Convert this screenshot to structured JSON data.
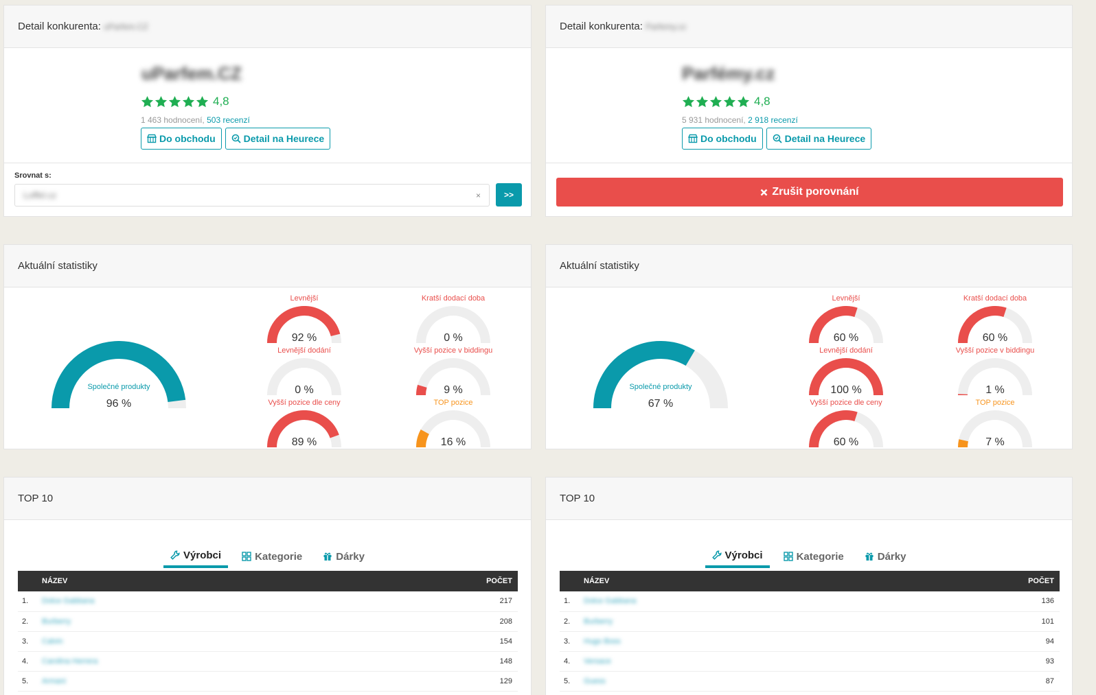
{
  "left": {
    "detail_title": "Detail konkurenta:",
    "shop_blur": "uParfem.CZ",
    "shop_name": "uParfem.CZ",
    "rating": "4,8",
    "counts_text": "1 463 hodnocení,",
    "reviews_link": "503 recenzí",
    "btn_shop": "Do obchodu",
    "btn_heureka": "Detail na Heurece",
    "compare_label": "Srovnat s:",
    "compare_value": "Loffel.cz",
    "compare_clear": "×",
    "compare_go": ">>",
    "stats_title": "Aktuální statistiky",
    "shared_label": "Společné produkty",
    "shared_value": "96 %",
    "shared_fraction": 0.96,
    "gauges": [
      {
        "title": "Levnější",
        "value": "92 %",
        "fraction": 0.92,
        "color": "#e94e4b",
        "tclass": "red"
      },
      {
        "title": "Kratší dodací doba",
        "value": "0 %",
        "fraction": 0.0,
        "color": "#e94e4b",
        "tclass": "red"
      },
      {
        "title": "Levnější dodání",
        "value": "0 %",
        "fraction": 0.0,
        "color": "#e94e4b",
        "tclass": "red"
      },
      {
        "title": "Vyšší pozice v biddingu",
        "value": "9 %",
        "fraction": 0.09,
        "color": "#e94e4b",
        "tclass": "red"
      },
      {
        "title": "Vyšší pozice dle ceny",
        "value": "89 %",
        "fraction": 0.89,
        "color": "#e94e4b",
        "tclass": "red"
      },
      {
        "title": "TOP pozice",
        "value": "16 %",
        "fraction": 0.16,
        "color": "#f7941d",
        "tclass": "orange"
      }
    ],
    "top_title": "TOP 10",
    "rows": [
      {
        "idx": "1.",
        "name": "Dolce Gabbana",
        "count": "217"
      },
      {
        "idx": "2.",
        "name": "Burberry",
        "count": "208"
      },
      {
        "idx": "3.",
        "name": "Calvin",
        "count": "154"
      },
      {
        "idx": "4.",
        "name": "Carolina Herrera",
        "count": "148"
      },
      {
        "idx": "5.",
        "name": "Armani",
        "count": "129"
      }
    ]
  },
  "right": {
    "detail_title": "Detail konkurenta:",
    "shop_blur": "Parfemy.cz",
    "shop_name": "Parfémy.cz",
    "rating": "4,8",
    "counts_text": "5 931 hodnocení,",
    "reviews_link": "2 918 recenzí",
    "btn_shop": "Do obchodu",
    "btn_heureka": "Detail na Heurece",
    "cancel_label": "Zrušit porovnání",
    "stats_title": "Aktuální statistiky",
    "shared_label": "Společné produkty",
    "shared_value": "67 %",
    "shared_fraction": 0.67,
    "gauges": [
      {
        "title": "Levnější",
        "value": "60 %",
        "fraction": 0.6,
        "color": "#e94e4b",
        "tclass": "red"
      },
      {
        "title": "Kratší dodací doba",
        "value": "60 %",
        "fraction": 0.6,
        "color": "#e94e4b",
        "tclass": "red"
      },
      {
        "title": "Levnější dodání",
        "value": "100 %",
        "fraction": 1.0,
        "color": "#e94e4b",
        "tclass": "red"
      },
      {
        "title": "Vyšší pozice v biddingu",
        "value": "1 %",
        "fraction": 0.01,
        "color": "#e94e4b",
        "tclass": "red"
      },
      {
        "title": "Vyšší pozice dle ceny",
        "value": "60 %",
        "fraction": 0.6,
        "color": "#e94e4b",
        "tclass": "red"
      },
      {
        "title": "TOP pozice",
        "value": "7 %",
        "fraction": 0.07,
        "color": "#f7941d",
        "tclass": "orange"
      }
    ],
    "top_title": "TOP 10",
    "rows": [
      {
        "idx": "1.",
        "name": "Dolce Gabbana",
        "count": "136"
      },
      {
        "idx": "2.",
        "name": "Burberry",
        "count": "101"
      },
      {
        "idx": "3.",
        "name": "Hugo Boss",
        "count": "94"
      },
      {
        "idx": "4.",
        "name": "Versace",
        "count": "93"
      },
      {
        "idx": "5.",
        "name": "Guess",
        "count": "87"
      }
    ]
  },
  "tabs": {
    "makers": "Výrobci",
    "categories": "Kategorie",
    "gifts": "Dárky"
  },
  "table_head": {
    "name": "NÁZEV",
    "count": "POČET"
  },
  "colors": {
    "teal": "#0a9aab",
    "red": "#e94e4b",
    "orange": "#f7941d",
    "green": "#1fae52"
  },
  "icons": [
    "star-icon",
    "store-icon",
    "search-check-icon",
    "close-icon",
    "wrench-icon",
    "grid-icon",
    "gift-icon"
  ]
}
